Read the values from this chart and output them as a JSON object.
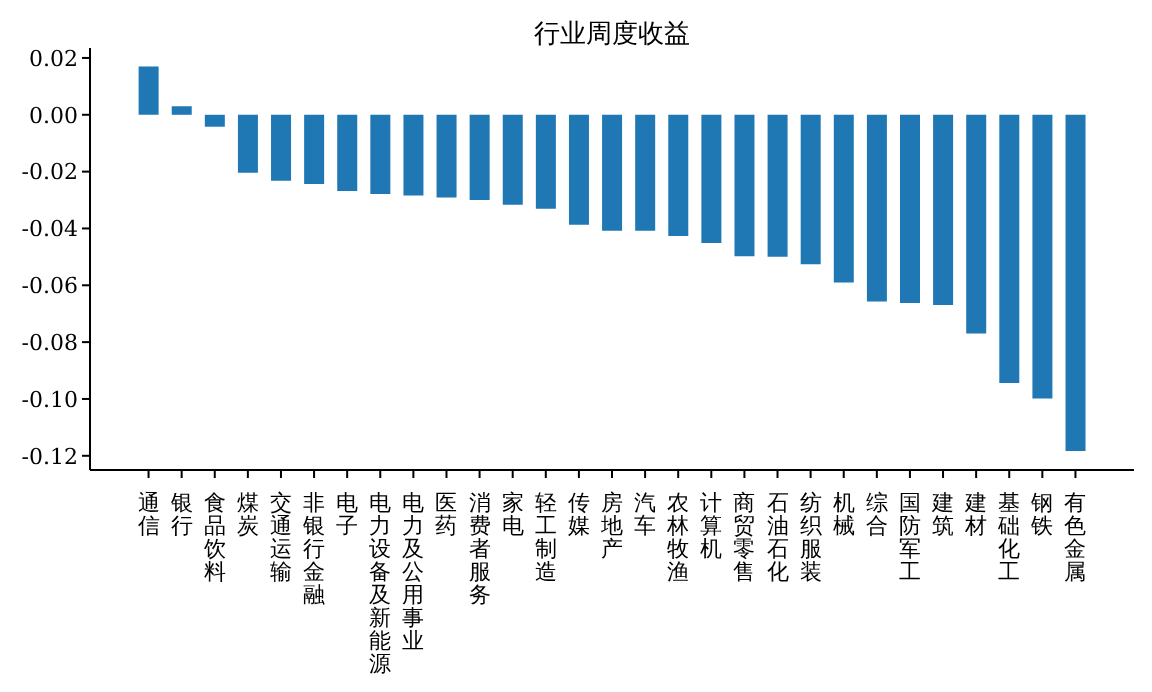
{
  "chart_data": {
    "type": "bar",
    "title": "行业周度收益",
    "categories": [
      "通信",
      "银行",
      "食品饮料",
      "煤炭",
      "交通运输",
      "非银行金融",
      "电子",
      "电力设备及新能源",
      "电力及公用事业",
      "医药",
      "消费者服务",
      "家电",
      "轻工制造",
      "传媒",
      "房地产",
      "汽车",
      "农林牧渔",
      "计算机",
      "商贸零售",
      "石油石化",
      "纺织服装",
      "机械",
      "综合",
      "国防军工",
      "建筑",
      "建材",
      "基础化工",
      "钢铁",
      "有色金属"
    ],
    "values": [
      0.017,
      0.003,
      -0.0042,
      -0.0204,
      -0.0232,
      -0.0244,
      -0.0268,
      -0.0279,
      -0.0284,
      -0.0291,
      -0.03,
      -0.0317,
      -0.0331,
      -0.0387,
      -0.0408,
      -0.0408,
      -0.0427,
      -0.0451,
      -0.0498,
      -0.05,
      -0.0526,
      -0.059,
      -0.0657,
      -0.0662,
      -0.0669,
      -0.077,
      -0.0944,
      -0.0998,
      -0.1183
    ],
    "color": "#1f77b4",
    "ylim": [
      -0.125,
      0.0235
    ],
    "yticks": [
      0.02,
      {
        "value": 0,
        "label": "0.00"
      },
      {
        "value": -0.02,
        "label": "-0.02"
      },
      {
        "value": -0.04,
        "label": "-0.04"
      },
      {
        "value": -0.06,
        "label": "-0.06"
      },
      {
        "value": -0.08,
        "label": "-0.08"
      },
      {
        "value": -0.1,
        "label": "-0.10"
      },
      {
        "value": -0.12,
        "label": "-0.12"
      }
    ],
    "grid": false,
    "legend": false
  }
}
